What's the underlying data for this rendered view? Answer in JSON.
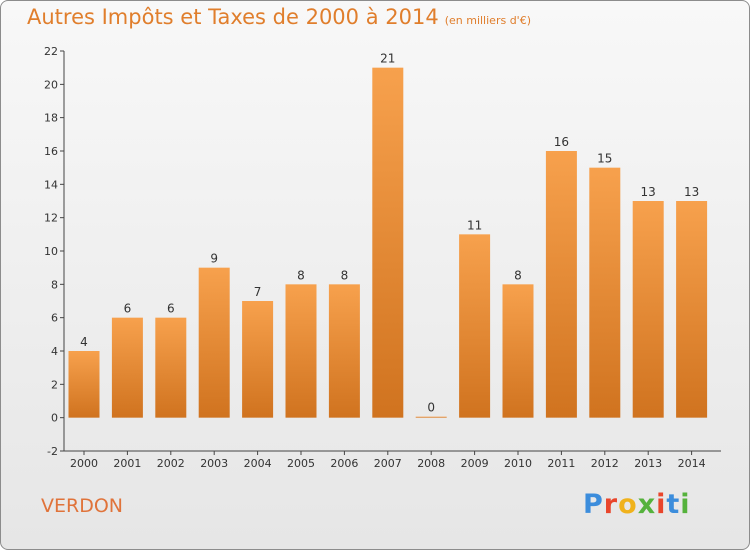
{
  "title": {
    "main": "Autres Impôts et Taxes de 2000 à 2014",
    "unit": "(en milliers d'€)"
  },
  "footer": {
    "name": "VERDON",
    "brand": "Proxiti",
    "brand_colors": [
      "#3c8ddc",
      "#e9452b",
      "#f0b21c",
      "#55b23c",
      "#e9452b",
      "#3c8ddc",
      "#55b23c"
    ]
  },
  "colors": {
    "bar_light": "#f7a14d",
    "bar_dark": "#d0731f",
    "accent": "#e07e2c"
  },
  "chart_data": {
    "type": "bar",
    "categories": [
      "2000",
      "2001",
      "2002",
      "2003",
      "2004",
      "2005",
      "2006",
      "2007",
      "2008",
      "2009",
      "2010",
      "2011",
      "2012",
      "2013",
      "2014"
    ],
    "values": [
      4,
      6,
      6,
      9,
      7,
      8,
      8,
      21,
      0,
      11,
      8,
      16,
      15,
      13,
      13
    ],
    "title": "Autres Impôts et Taxes de 2000 à 2014",
    "ylim": [
      -2,
      22
    ],
    "yticks": [
      -2,
      0,
      2,
      4,
      6,
      8,
      10,
      12,
      14,
      16,
      18,
      20,
      22
    ],
    "grid": false
  }
}
